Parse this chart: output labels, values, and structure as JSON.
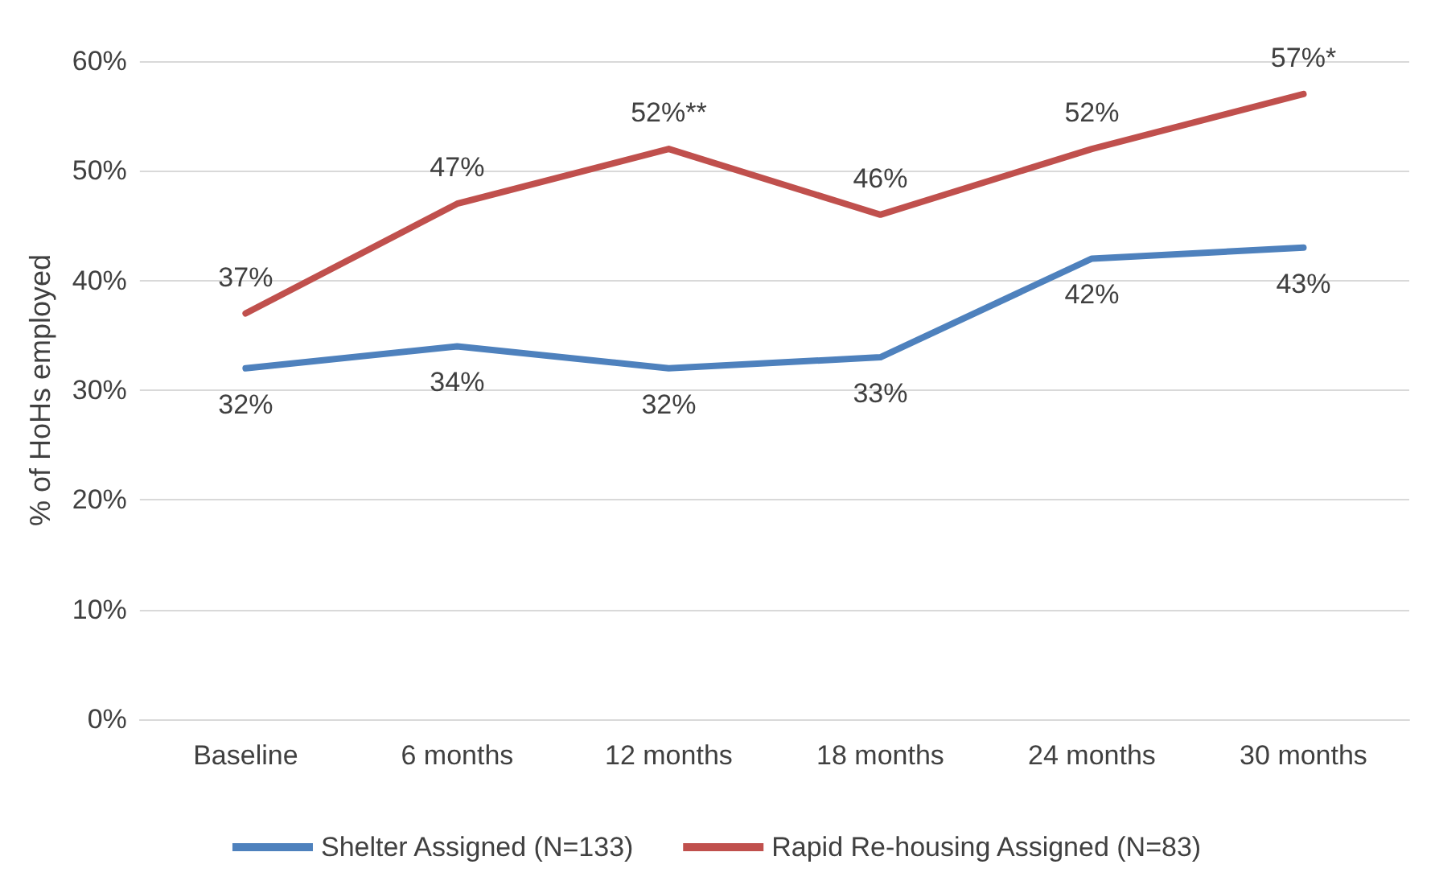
{
  "chart_data": {
    "type": "line",
    "ylabel": "% of HoHs employed",
    "categories": [
      "Baseline",
      "6 months",
      "12 months",
      "18 months",
      "24 months",
      "30 months"
    ],
    "series": [
      {
        "name": "Shelter Assigned (N=133)",
        "color": "#4e81bd",
        "values": [
          32,
          34,
          32,
          33,
          42,
          43
        ],
        "value_labels": [
          "32%",
          "34%",
          "32%",
          "33%",
          "42%",
          "43%"
        ]
      },
      {
        "name": "Rapid Re-housing Assigned (N=83)",
        "color": "#c0504d",
        "values": [
          37,
          47,
          52,
          46,
          52,
          57
        ],
        "value_labels": [
          "37%",
          "47%",
          "52%**",
          "46%",
          "52%",
          "57%*"
        ]
      }
    ],
    "ylim": [
      0,
      60
    ],
    "yticks": [
      {
        "value": 0,
        "label": "0%"
      },
      {
        "value": 10,
        "label": "10%"
      },
      {
        "value": 20,
        "label": "20%"
      },
      {
        "value": 30,
        "label": "30%"
      },
      {
        "value": 40,
        "label": "40%"
      },
      {
        "value": 50,
        "label": "50%"
      },
      {
        "value": 60,
        "label": "60%"
      }
    ],
    "grid": "y",
    "legend": "bottom",
    "marker": "none",
    "line_style": "solid"
  }
}
